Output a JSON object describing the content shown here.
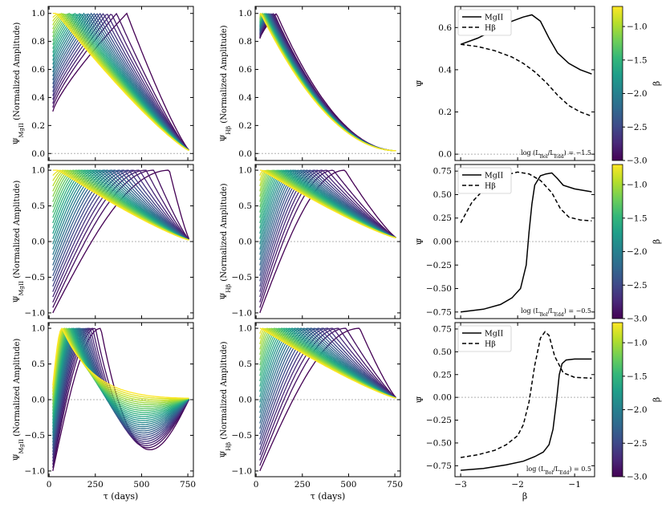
{
  "figure": {
    "colorbar_label": "β",
    "colorbar_ticks": [
      "−3.0",
      "−2.5",
      "−2.0",
      "−1.5",
      "−1.0"
    ],
    "colorbar_tick_values": [
      -3.0,
      -2.5,
      -2.0,
      -1.5,
      -1.0
    ],
    "colorbar_range": [
      -3.0,
      -0.7
    ],
    "viridis": [
      "#440154",
      "#482878",
      "#3e4a89",
      "#31688e",
      "#26828e",
      "#1f9e89",
      "#35b779",
      "#6ece58",
      "#b5de2b",
      "#fde725"
    ]
  },
  "chart_data": [
    {
      "id": "mgii_top",
      "type": "line",
      "row": 0,
      "col": 0,
      "ylabel": "Ψ_MgII (Normalized Amplitude)",
      "xlabel": "",
      "xlim": [
        -5,
        780
      ],
      "ylim": [
        -0.05,
        1.05
      ],
      "xticks": [
        0,
        250,
        500,
        750
      ],
      "yticks": [
        0.0,
        0.2,
        0.4,
        0.6,
        0.8,
        1.0
      ],
      "ytick_labels": [
        "0.0",
        "0.2",
        "0.4",
        "0.6",
        "0.8",
        "1.0"
      ],
      "family": {
        "n_curves": 26,
        "beta_range": [
          -3.0,
          -0.7
        ],
        "x_range": [
          20,
          760
        ],
        "shape": "rise_to_peak_then_decay",
        "start_at_low_beta": 0.3,
        "start_at_high_beta": 1.0,
        "peak_tau_low_beta": 420,
        "peak_tau_high_beta": 40,
        "end_value": 0.02
      }
    },
    {
      "id": "hb_top",
      "type": "line",
      "row": 0,
      "col": 1,
      "ylabel": "Ψ_Hβ (Normalized Amplitude)",
      "xlabel": "",
      "xlim": [
        -5,
        780
      ],
      "ylim": [
        -0.05,
        1.05
      ],
      "xticks": [
        0,
        250,
        500,
        750
      ],
      "yticks": [
        0.0,
        0.2,
        0.4,
        0.6,
        0.8,
        1.0
      ],
      "ytick_labels": [
        "0.0",
        "0.2",
        "0.4",
        "0.6",
        "0.8",
        "1.0"
      ],
      "family": {
        "n_curves": 26,
        "beta_range": [
          -3.0,
          -0.7
        ],
        "x_range": [
          20,
          760
        ],
        "shape": "plateau_then_decay",
        "start_at_low_beta": 0.82,
        "start_at_high_beta": 1.0,
        "peak_tau_low_beta": 110,
        "peak_tau_high_beta": 25,
        "end_value": 0.02
      }
    },
    {
      "id": "psi_top",
      "type": "line",
      "row": 0,
      "col": 2,
      "ylabel": "Ψ̄",
      "xlabel": "",
      "xlim": [
        -3.1,
        -0.65
      ],
      "ylim": [
        -0.03,
        0.7
      ],
      "xticks": [
        -3,
        -2,
        -1
      ],
      "yticks": [
        0.0,
        0.2,
        0.4,
        0.6
      ],
      "ytick_labels": [
        "0.0",
        "0.2",
        "0.4",
        "0.6"
      ],
      "legend": [
        "MgII",
        "Hβ"
      ],
      "annotation": "log (L_Bol/L_Edd) = −1.5",
      "series": [
        {
          "name": "MgII",
          "dash": "solid",
          "x": [
            -3.0,
            -2.7,
            -2.4,
            -2.1,
            -1.9,
            -1.75,
            -1.6,
            -1.45,
            -1.3,
            -1.1,
            -0.9,
            -0.7
          ],
          "y": [
            0.52,
            0.55,
            0.59,
            0.63,
            0.65,
            0.66,
            0.63,
            0.55,
            0.48,
            0.43,
            0.4,
            0.38
          ]
        },
        {
          "name": "Hβ",
          "dash": "dashed",
          "x": [
            -3.0,
            -2.7,
            -2.4,
            -2.1,
            -1.9,
            -1.7,
            -1.5,
            -1.3,
            -1.1,
            -0.9,
            -0.7
          ],
          "y": [
            0.52,
            0.51,
            0.49,
            0.46,
            0.43,
            0.39,
            0.34,
            0.28,
            0.23,
            0.2,
            0.18
          ]
        }
      ]
    },
    {
      "id": "mgii_mid",
      "type": "line",
      "row": 1,
      "col": 0,
      "ylabel": "Ψ_MgII (Normalized Amplitude)",
      "xlabel": "",
      "xlim": [
        -5,
        780
      ],
      "ylim": [
        -1.08,
        1.08
      ],
      "xticks": [
        0,
        250,
        500,
        750
      ],
      "yticks": [
        -1.0,
        -0.5,
        0.0,
        0.5,
        1.0
      ],
      "ytick_labels": [
        "−1.0",
        "−0.5",
        "0.0",
        "0.5",
        "1.0"
      ],
      "family": {
        "n_curves": 28,
        "beta_range": [
          -3.0,
          -0.7
        ],
        "x_range": [
          20,
          760
        ],
        "shape": "negative_start_rise",
        "start_at_low_beta": -1.0,
        "start_at_high_beta": 1.0,
        "peak_tau_low_beta": 650,
        "peak_tau_high_beta": 50,
        "end_value": 0.02
      }
    },
    {
      "id": "hb_mid",
      "type": "line",
      "row": 1,
      "col": 1,
      "ylabel": "Ψ_Hβ (Normalized Amplitude)",
      "xlabel": "",
      "xlim": [
        -5,
        780
      ],
      "ylim": [
        -1.08,
        1.08
      ],
      "xticks": [
        0,
        250,
        500,
        750
      ],
      "yticks": [
        -1.0,
        -0.5,
        0.0,
        0.5,
        1.0
      ],
      "ytick_labels": [
        "−1.0",
        "−0.5",
        "0.0",
        "0.5",
        "1.0"
      ],
      "family": {
        "n_curves": 28,
        "beta_range": [
          -3.0,
          -0.7
        ],
        "x_range": [
          20,
          760
        ],
        "shape": "negative_start_rise",
        "start_at_low_beta": -1.0,
        "start_at_high_beta": 1.0,
        "peak_tau_low_beta": 480,
        "peak_tau_high_beta": 30,
        "end_value": 0.05
      }
    },
    {
      "id": "psi_mid",
      "type": "line",
      "row": 1,
      "col": 2,
      "ylabel": "Ψ̄",
      "xlabel": "",
      "xlim": [
        -3.1,
        -0.65
      ],
      "ylim": [
        -0.82,
        0.82
      ],
      "xticks": [
        -3,
        -2,
        -1
      ],
      "yticks": [
        -0.75,
        -0.5,
        -0.25,
        0.0,
        0.25,
        0.5,
        0.75
      ],
      "ytick_labels": [
        "−0.75",
        "−0.50",
        "−0.25",
        "0.00",
        "0.25",
        "0.50",
        "0.75"
      ],
      "legend": [
        "MgII",
        "Hβ"
      ],
      "annotation": "log (L_Bol/L_Edd) = −0.5",
      "series": [
        {
          "name": "MgII",
          "dash": "solid",
          "x": [
            -3.0,
            -2.6,
            -2.3,
            -2.1,
            -1.95,
            -1.85,
            -1.8,
            -1.75,
            -1.7,
            -1.6,
            -1.5,
            -1.4,
            -1.3,
            -1.2,
            -1.0,
            -0.7
          ],
          "y": [
            -0.75,
            -0.72,
            -0.67,
            -0.6,
            -0.5,
            -0.25,
            0.1,
            0.4,
            0.6,
            0.7,
            0.72,
            0.73,
            0.67,
            0.6,
            0.56,
            0.53
          ]
        },
        {
          "name": "Hβ",
          "dash": "dashed",
          "x": [
            -3.0,
            -2.8,
            -2.6,
            -2.4,
            -2.2,
            -2.0,
            -1.8,
            -1.6,
            -1.4,
            -1.25,
            -1.1,
            -0.9,
            -0.7
          ],
          "y": [
            0.2,
            0.42,
            0.55,
            0.65,
            0.71,
            0.74,
            0.72,
            0.65,
            0.52,
            0.35,
            0.26,
            0.23,
            0.22
          ]
        }
      ]
    },
    {
      "id": "mgii_bot",
      "type": "line",
      "row": 2,
      "col": 0,
      "ylabel": "Ψ_MgII (Normalized Amplitude)",
      "xlabel": "τ (days)",
      "xlim": [
        -5,
        780
      ],
      "ylim": [
        -1.08,
        1.08
      ],
      "xticks": [
        0,
        250,
        500,
        750
      ],
      "xtick_labels": [
        "0",
        "250",
        "500",
        "750"
      ],
      "yticks": [
        -1.0,
        -0.5,
        0.0,
        0.5,
        1.0
      ],
      "ytick_labels": [
        "−1.0",
        "−0.5",
        "0.0",
        "0.5",
        "1.0"
      ],
      "family": {
        "n_curves": 28,
        "beta_range": [
          -3.0,
          -0.7
        ],
        "x_range": [
          20,
          760
        ],
        "shape": "spike_then_dip",
        "start_at_low_beta": -1.0,
        "start_at_high_beta": 0.2,
        "peak_tau_low_beta": 280,
        "peak_tau_high_beta": 70,
        "end_value": 0.02
      }
    },
    {
      "id": "hb_bot",
      "type": "line",
      "row": 2,
      "col": 1,
      "ylabel": "Ψ_Hβ (Normalized Amplitude)",
      "xlabel": "τ (days)",
      "xlim": [
        -5,
        780
      ],
      "ylim": [
        -1.08,
        1.08
      ],
      "xticks": [
        0,
        250,
        500,
        750
      ],
      "xtick_labels": [
        "0",
        "250",
        "500",
        "750"
      ],
      "yticks": [
        -1.0,
        -0.5,
        0.0,
        0.5,
        1.0
      ],
      "ytick_labels": [
        "−1.0",
        "−0.5",
        "0.0",
        "0.5",
        "1.0"
      ],
      "family": {
        "n_curves": 28,
        "beta_range": [
          -3.0,
          -0.7
        ],
        "x_range": [
          20,
          760
        ],
        "shape": "negative_start_rise",
        "start_at_low_beta": -1.0,
        "start_at_high_beta": 1.0,
        "peak_tau_low_beta": 560,
        "peak_tau_high_beta": 25,
        "end_value": 0.02
      }
    },
    {
      "id": "psi_bot",
      "type": "line",
      "row": 2,
      "col": 2,
      "ylabel": "Ψ̄",
      "xlabel": "β",
      "xlim": [
        -3.1,
        -0.65
      ],
      "ylim": [
        -0.87,
        0.82
      ],
      "xticks": [
        -3,
        -2,
        -1
      ],
      "xtick_labels": [
        "−3",
        "−2",
        "−1"
      ],
      "yticks": [
        -0.75,
        -0.5,
        -0.25,
        0.0,
        0.25,
        0.5,
        0.75
      ],
      "ytick_labels": [
        "−0.75",
        "−0.50",
        "−0.25",
        "0.00",
        "0.25",
        "0.50",
        "0.75"
      ],
      "legend": [
        "MgII",
        "Hβ"
      ],
      "annotation": "log (L_Bol/L_Edd) = 0.5",
      "series": [
        {
          "name": "MgII",
          "dash": "solid",
          "x": [
            -3.0,
            -2.6,
            -2.2,
            -1.9,
            -1.7,
            -1.55,
            -1.45,
            -1.38,
            -1.32,
            -1.27,
            -1.22,
            -1.15,
            -1.0,
            -0.7
          ],
          "y": [
            -0.8,
            -0.78,
            -0.74,
            -0.7,
            -0.65,
            -0.6,
            -0.52,
            -0.35,
            -0.05,
            0.25,
            0.37,
            0.41,
            0.42,
            0.42
          ]
        },
        {
          "name": "Hβ",
          "dash": "dashed",
          "x": [
            -3.0,
            -2.7,
            -2.4,
            -2.2,
            -2.0,
            -1.9,
            -1.8,
            -1.7,
            -1.6,
            -1.52,
            -1.45,
            -1.35,
            -1.2,
            -1.0,
            -0.7
          ],
          "y": [
            -0.66,
            -0.63,
            -0.58,
            -0.52,
            -0.42,
            -0.3,
            -0.05,
            0.35,
            0.65,
            0.72,
            0.68,
            0.45,
            0.27,
            0.22,
            0.21
          ]
        }
      ]
    }
  ]
}
